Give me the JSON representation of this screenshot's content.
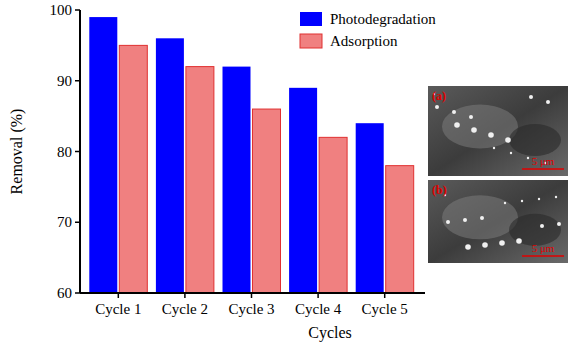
{
  "chart_data": {
    "type": "bar",
    "categories": [
      "Cycle 1",
      "Cycle 2",
      "Cycle 3",
      "Cycle 4",
      "Cycle 5"
    ],
    "series": [
      {
        "name": "Photodegradation",
        "color": "#0000ff",
        "values": [
          99,
          96,
          92,
          89,
          84
        ]
      },
      {
        "name": "Adsorption",
        "color": "#f08080",
        "values": [
          95,
          92,
          86,
          82,
          78
        ]
      }
    ],
    "x_label": "Cycles",
    "y_label": "Removal (%)",
    "ylim": [
      60,
      100
    ],
    "yticks": [
      60,
      70,
      80,
      90,
      100
    ],
    "grid": false,
    "legend": "top-right",
    "annotations": [
      "(a)",
      "5 μm",
      "(b)",
      "5 μm"
    ]
  }
}
